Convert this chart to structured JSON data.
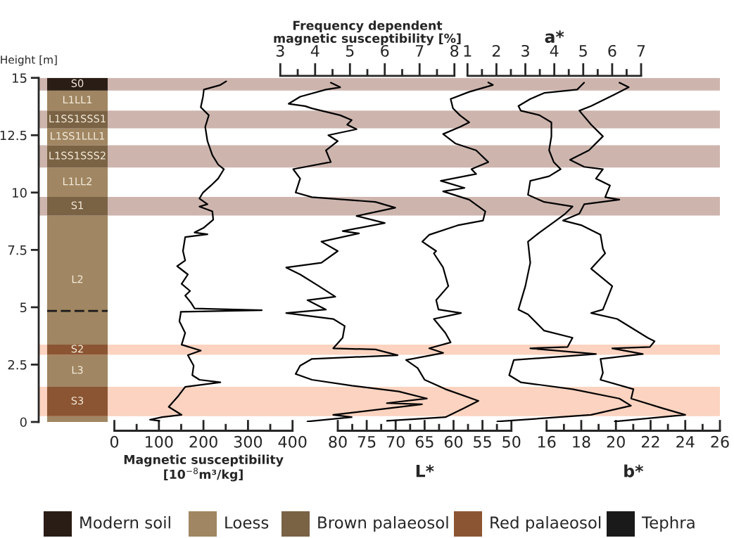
{
  "chart_data": [
    {
      "type": "bar",
      "stacked": true,
      "categories": [
        null
      ],
      "ylabel": "Height [m]",
      "ylim": [
        0,
        15
      ],
      "yticks": [
        0,
        2.5,
        5,
        7.5,
        10,
        12.5,
        15
      ],
      "tick_labels": "y",
      "series": [
        {
          "color": "#a08662",
          "values": [
            0.25
          ]
        },
        {
          "name": "S3",
          "color": "#8b5533",
          "values": [
            1.28
          ]
        },
        {
          "name": "L3",
          "color": "#a08662",
          "values": [
            1.4
          ]
        },
        {
          "name": "S2",
          "color": "#8b5533",
          "values": [
            0.44
          ]
        },
        {
          "name": "L2",
          "color": "#a08662",
          "values": [
            5.63
          ]
        },
        {
          "name": "S1",
          "color": "#7a6244",
          "values": [
            0.81
          ]
        },
        {
          "name": "L1LL2",
          "color": "#a08662",
          "values": [
            1.28
          ]
        },
        {
          "name": "L1SS1SSS2",
          "color": "#7a6244",
          "values": [
            0.97
          ]
        },
        {
          "name": "L1SS1LLL1",
          "color": "#a08662",
          "values": [
            0.74
          ]
        },
        {
          "name": "L1SS1SSS1",
          "color": "#7a6244",
          "values": [
            0.77
          ]
        },
        {
          "name": "L1LL1",
          "color": "#a08662",
          "values": [
            0.88
          ]
        },
        {
          "name": "S0",
          "color": "#2a1d15",
          "values": [
            0.55
          ]
        }
      ],
      "bands": [
        {
          "axis": "y",
          "from": 14.45,
          "to": 15.0,
          "color": "#cdb5ae"
        },
        {
          "axis": "y",
          "from": 12.8,
          "to": 13.57,
          "color": "#cdb5ae"
        },
        {
          "axis": "y",
          "from": 11.09,
          "to": 12.06,
          "color": "#cdb5ae"
        },
        {
          "axis": "y",
          "from": 9.0,
          "to": 9.81,
          "color": "#cdb5ae"
        },
        {
          "axis": "y",
          "from": 2.93,
          "to": 3.37,
          "color": "#fbd3c0"
        },
        {
          "axis": "y",
          "from": 0.25,
          "to": 1.53,
          "color": "#fbd3c0"
        }
      ],
      "ref_lines": [
        {
          "axis": "y",
          "value": 4.84,
          "color": "#1a1a1a",
          "line_style": "dashed"
        }
      ],
      "annotations": [
        "Modern soil",
        "Loess",
        "Brown palaeosol",
        "Red palaeosol",
        "Tephra"
      ]
    },
    {
      "type": "line",
      "orientation": "horizontal",
      "xlabel": "Magnetic susceptibility\n[10$^{−8}$m³/kg]",
      "xlim": [
        0,
        400
      ],
      "ylim": [
        0,
        15
      ],
      "tick_labels": "x",
      "xticks": [
        0,
        {
          "value": 50,
          "label": null
        },
        100,
        {
          "value": 150,
          "label": null
        },
        200,
        {
          "value": 250,
          "label": null
        },
        300,
        {
          "value": 350,
          "label": null
        },
        400
      ],
      "series": [
        {
          "color": "#000000",
          "x": [
            14.85,
            14.69,
            14.49,
            14.18,
            13.72,
            13.37,
            12.86,
            12.24,
            11.63,
            11.22,
            11.02,
            10.61,
            10.31,
            10.0,
            9.74,
            9.49,
            9.39,
            9.18,
            8.82,
            8.47,
            8.26,
            8.18,
            8.06,
            7.45,
            7.04,
            6.79,
            6.43,
            6.02,
            5.71,
            5.51,
            5.2,
            4.95,
            4.87,
            4.8,
            4.74,
            4.39,
            3.88,
            3.37,
            3.11,
            2.91,
            2.45,
            2.04,
            1.84,
            1.73,
            1.53,
            1.12,
            0.66,
            0.31,
            0.21,
            0.1,
            0.05
          ],
          "values": [
            251,
            238,
            201,
            199,
            194,
            212,
            204,
            209,
            220,
            233,
            246,
            233,
            217,
            199,
            191,
            209,
            191,
            220,
            222,
            201,
            180,
            209,
            159,
            154,
            159,
            141,
            165,
            151,
            170,
            159,
            172,
            180,
            331,
            149,
            149,
            146,
            159,
            151,
            194,
            165,
            178,
            175,
            191,
            238,
            159,
            143,
            122,
            151,
            107,
            80,
            101
          ]
        }
      ]
    },
    {
      "type": "line",
      "orientation": "horizontal",
      "x2label": "Frequency dependent\nmagnetic susceptibility [%]",
      "x2lim": [
        3,
        8
      ],
      "ylim": [
        0,
        15
      ],
      "tick_labels": "x",
      "x2ticks": [
        3,
        {
          "value": 3.5,
          "label": null
        },
        4,
        {
          "value": 4.5,
          "label": null
        },
        5,
        {
          "value": 5.5,
          "label": null
        },
        6,
        {
          "value": 6.5,
          "label": null
        },
        7,
        {
          "value": 7.5,
          "label": null
        },
        8
      ],
      "series": [
        {
          "color": "#000000",
          "axis": "x2",
          "x": [
            14.79,
            14.59,
            14.49,
            14.18,
            13.87,
            13.77,
            13.67,
            13.37,
            13.16,
            12.96,
            12.76,
            12.5,
            12.24,
            11.84,
            11.33,
            11.02,
            10.61,
            10.0,
            9.8,
            9.59,
            9.34,
            8.98,
            8.67,
            8.32,
            8.22,
            7.86,
            7.45,
            6.94,
            6.73,
            6.43,
            5.92,
            5.46,
            5.31,
            4.9,
            4.75,
            4.49,
            4.18,
            3.67,
            3.21,
            3.16,
            2.91,
            2.75,
            2.45,
            2.09,
            1.84,
            1.58,
            1.33,
            1.02,
            0.82,
            0.77,
            0.31,
            0.21,
            0.02
          ],
          "values": [
            4.45,
            4.72,
            4.31,
            3.57,
            3.24,
            3.71,
            3.91,
            4.72,
            5.05,
            4.92,
            5.19,
            4.38,
            4.65,
            4.31,
            4.45,
            3.37,
            3.57,
            3.44,
            3.91,
            5.73,
            6.3,
            5.19,
            6.0,
            4.79,
            5.26,
            4.18,
            4.65,
            4.18,
            3.17,
            3.57,
            4.11,
            4.58,
            3.78,
            4.31,
            3.17,
            4.52,
            4.85,
            4.79,
            4.52,
            5.73,
            6.37,
            3.91,
            3.57,
            3.44,
            3.91,
            5.05,
            6.4,
            7.21,
            6.06,
            7.07,
            4.52,
            5.05,
            3.78
          ]
        }
      ]
    },
    {
      "type": "line",
      "orientation": "horizontal",
      "xlabel": "L*",
      "xlim": [
        80,
        50
      ],
      "ylim": [
        0,
        15
      ],
      "tick_labels": "x",
      "xticks": [
        80,
        {
          "value": 77.5,
          "label": null
        },
        75,
        {
          "value": 72.5,
          "label": null
        },
        70,
        {
          "value": 67.5,
          "label": null
        },
        65,
        {
          "value": 62.5,
          "label": null
        },
        60,
        {
          "value": 57.5,
          "label": null
        },
        55,
        {
          "value": 52.5,
          "label": null
        },
        50
      ],
      "series": [
        {
          "color": "#000000",
          "x": [
            14.8,
            14.69,
            14.39,
            14.08,
            13.67,
            13.37,
            13.06,
            12.86,
            12.55,
            12.14,
            11.84,
            11.33,
            11.02,
            10.81,
            10.51,
            10.2,
            10.05,
            9.69,
            9.18,
            8.78,
            8.57,
            8.16,
            7.86,
            7.45,
            7.35,
            6.73,
            5.92,
            5.31,
            4.9,
            4.75,
            4.49,
            3.88,
            3.47,
            3.21,
            3.01,
            2.7,
            2.35,
            1.84,
            1.43,
            0.92,
            0.61,
            0.21,
            0.05
          ],
          "values": [
            54.0,
            53.2,
            57.3,
            60.5,
            60.1,
            58.9,
            57.3,
            58.9,
            61.8,
            59.7,
            56.1,
            54.0,
            56.9,
            56.1,
            62.2,
            58.1,
            61.8,
            57.3,
            54.5,
            54.9,
            59.3,
            64.2,
            65.4,
            63.0,
            63.4,
            61.8,
            60.9,
            63.0,
            62.6,
            58.7,
            63.4,
            61.4,
            60.5,
            64.2,
            61.8,
            68.2,
            66.2,
            65.0,
            61.4,
            55.7,
            58.1,
            61.4,
            71.5
          ]
        }
      ]
    },
    {
      "type": "line",
      "orientation": "horizontal",
      "x2label": "a*",
      "x2lim": [
        1,
        7
      ],
      "ylim": [
        0,
        15
      ],
      "tick_labels": "x",
      "x2ticks": [
        1,
        {
          "value": 1.5,
          "label": null
        },
        2,
        {
          "value": 2.5,
          "label": null
        },
        3,
        {
          "value": 3.5,
          "label": null
        },
        4,
        {
          "value": 4.5,
          "label": null
        },
        5,
        {
          "value": 5.5,
          "label": null
        },
        6,
        {
          "value": 6.5,
          "label": null
        },
        7
      ],
      "series": [
        {
          "color": "#000000",
          "axis": "x2",
          "x": [
            14.79,
            14.49,
            14.34,
            14.08,
            13.77,
            13.57,
            13.37,
            13.06,
            12.45,
            11.84,
            11.33,
            11.02,
            10.71,
            10.51,
            9.9,
            9.59,
            9.39,
            9.08,
            8.78,
            8.26,
            7.86,
            6.94,
            5.92,
            4.9,
            4.69,
            3.98,
            3.67,
            3.27,
            3.21,
            2.96,
            2.7,
            2.04,
            1.73,
            1.43,
            1.02,
            0.71,
            0.31,
            0.02
          ],
          "values": [
            5.03,
            4.79,
            3.65,
            3.17,
            2.76,
            2.84,
            3.49,
            3.9,
            3.9,
            3.82,
            3.98,
            4.22,
            3.82,
            3.17,
            3.09,
            3.65,
            4.63,
            4.38,
            4.06,
            3.49,
            3.09,
            3.17,
            3.0,
            2.76,
            3.09,
            3.65,
            4.63,
            4.46,
            3.17,
            5.44,
            2.6,
            2.44,
            2.84,
            4.63,
            6.25,
            6.65,
            5.27,
            2.03
          ]
        }
      ]
    },
    {
      "type": "line",
      "orientation": "horizontal",
      "xlabel": "b*",
      "xlim": [
        16,
        26
      ],
      "ylim": [
        0,
        15
      ],
      "tick_labels": "x",
      "xticks": [
        16,
        {
          "value": 17,
          "label": null
        },
        18,
        {
          "value": 19,
          "label": null
        },
        20,
        {
          "value": 21,
          "label": null
        },
        22,
        {
          "value": 23,
          "label": null
        },
        24,
        {
          "value": 25,
          "label": null
        },
        26
      ],
      "series": [
        {
          "color": "#000000",
          "x": [
            14.79,
            14.59,
            14.28,
            13.77,
            13.57,
            12.96,
            12.45,
            11.84,
            11.43,
            11.12,
            11.02,
            10.61,
            10.31,
            9.8,
            9.69,
            9.49,
            9.08,
            8.78,
            8.57,
            8.16,
            7.55,
            7.35,
            6.68,
            5.92,
            4.9,
            4.75,
            4.49,
            3.67,
            3.52,
            3.27,
            3.21,
            2.96,
            2.75,
            2.14,
            1.84,
            1.43,
            1.02,
            0.61,
            0.31,
            0.02
          ],
          "values": [
            20.2,
            20.74,
            19.93,
            18.57,
            17.89,
            18.57,
            19.25,
            18.44,
            17.35,
            18.17,
            19.25,
            18.85,
            19.66,
            19.38,
            20.2,
            18.17,
            17.89,
            16.95,
            18.03,
            19.11,
            19.25,
            19.38,
            18.57,
            19.79,
            19.25,
            18.57,
            20.07,
            21.83,
            22.23,
            21.96,
            19.79,
            21.55,
            19.11,
            19.25,
            19.11,
            21.01,
            20.88,
            22.64,
            24.0,
            19.93
          ]
        }
      ]
    }
  ]
}
